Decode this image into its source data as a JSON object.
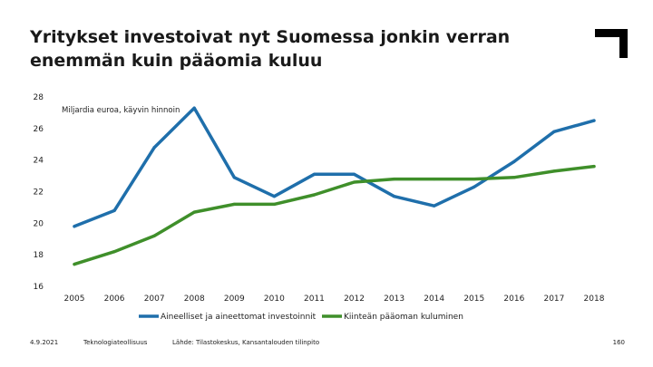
{
  "title": "Yritykset investoivat nyt Suomessa jonkin verran enemmän kuin pääomia kuluu",
  "footer": {
    "date": "4.9.2021",
    "organization": "Teknologiateollisuus",
    "source": "Lähde: Tilastokeskus, Kansantalouden tilinpito",
    "page": "160"
  },
  "colors": {
    "series1": "#1f6fab",
    "series2": "#3f8f2a",
    "logo": "#000000"
  },
  "chart_data": {
    "type": "line",
    "ylabel": "Miljardia euroa, käyvin hinnoin",
    "ylim": [
      16,
      28
    ],
    "yticks": [
      16,
      18,
      20,
      22,
      24,
      26,
      28
    ],
    "grid": false,
    "legend_position": "bottom",
    "x": [
      "2005",
      "2006",
      "2007",
      "2008",
      "2009",
      "2010",
      "2011",
      "2012",
      "2013",
      "2014",
      "2015",
      "2016",
      "2017",
      "2018"
    ],
    "series": [
      {
        "name": "Aineelliset ja aineettomat investoinnit",
        "values": [
          19.8,
          20.8,
          24.8,
          27.3,
          22.9,
          21.7,
          23.1,
          23.1,
          21.7,
          21.1,
          22.3,
          23.9,
          25.8,
          26.5
        ]
      },
      {
        "name": "Kiinteän pääoman kuluminen",
        "values": [
          17.4,
          18.2,
          19.2,
          20.7,
          21.2,
          21.2,
          21.8,
          22.6,
          22.8,
          22.8,
          22.8,
          22.9,
          23.3,
          23.6
        ]
      }
    ]
  }
}
